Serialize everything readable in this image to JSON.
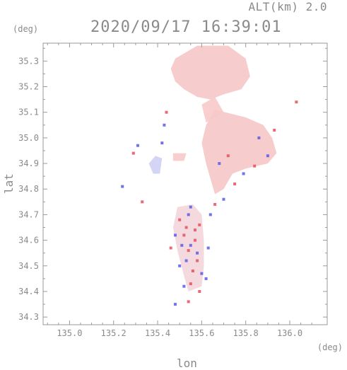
{
  "header": {
    "altitude_label": "ALT(km) 2.0",
    "timestamp": "2020/09/17 16:39:01"
  },
  "axes": {
    "lat_unit": "(deg)",
    "lon_unit": "(deg)",
    "y_title": "lat",
    "x_title": "lon",
    "xlim": [
      134.88,
      136.17
    ],
    "ylim": [
      34.27,
      35.37
    ],
    "x_ticks": [
      "135.0",
      "135.2",
      "135.4",
      "135.6",
      "135.8",
      "136.0"
    ],
    "y_ticks": [
      "34.3",
      "34.4",
      "34.5",
      "34.6",
      "34.7",
      "34.8",
      "34.9",
      "35.0",
      "35.1",
      "35.2",
      "35.3"
    ]
  },
  "chart_data": {
    "type": "heatmap",
    "xlim": [
      134.88,
      136.17
    ],
    "ylim": [
      34.27,
      35.37
    ],
    "x_ticks": [
      135.0,
      135.2,
      135.4,
      135.6,
      135.8,
      136.0
    ],
    "y_ticks": [
      34.3,
      34.4,
      34.5,
      34.6,
      34.7,
      34.8,
      34.9,
      35.0,
      35.1,
      35.2,
      35.3
    ],
    "colors": {
      "positive_light": "#f7c9c9",
      "positive_strong": "#e6505a",
      "negative_light": "#ccccf5",
      "negative_strong": "#5a5ae6"
    }
  }
}
